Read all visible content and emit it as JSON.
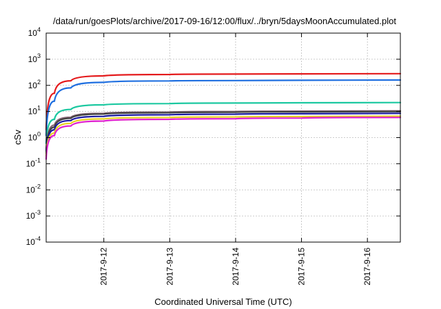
{
  "chart_data": {
    "type": "line",
    "title": "/data/run/goesPlots/archive/2017-09-16/12:00/flux/../bryn/5daysMoonAccumulated.plot",
    "xlabel": "Coordinated Universal Time (UTC)",
    "ylabel": "cSv",
    "y_scale": "log",
    "ylim": [
      0.0001,
      10000
    ],
    "xlim": [
      "2017-09-11 03:00",
      "2017-09-16 12:00"
    ],
    "x_ticks": [
      "2017-9-12",
      "2017-9-13",
      "2017-9-14",
      "2017-9-15",
      "2017-9-16"
    ],
    "y_ticks": [
      {
        "value": 0.0001,
        "base": "10",
        "exp": "-4"
      },
      {
        "value": 0.001,
        "base": "10",
        "exp": "-3"
      },
      {
        "value": 0.01,
        "base": "10",
        "exp": "-2"
      },
      {
        "value": 0.1,
        "base": "10",
        "exp": "-1"
      },
      {
        "value": 1,
        "base": "10",
        "exp": "0"
      },
      {
        "value": 10,
        "base": "10",
        "exp": "1"
      },
      {
        "value": 100,
        "base": "10",
        "exp": "2"
      },
      {
        "value": 1000,
        "base": "10",
        "exp": "3"
      },
      {
        "value": 10000,
        "base": "10",
        "exp": "4"
      }
    ],
    "grid": true,
    "series": [
      {
        "color": "#e41a1c",
        "x": [
          "2017-09-11 03:00",
          "2017-09-11 06:00",
          "2017-09-11 12:00",
          "2017-09-12 00:00",
          "2017-09-13 00:00",
          "2017-09-14 00:00",
          "2017-09-15 00:00",
          "2017-09-16 12:00"
        ],
        "y": [
          2,
          50,
          150,
          230,
          260,
          270,
          275,
          280
        ]
      },
      {
        "color": "#1f6fe0",
        "x": [
          "2017-09-11 03:00",
          "2017-09-11 06:00",
          "2017-09-11 12:00",
          "2017-09-12 00:00",
          "2017-09-13 00:00",
          "2017-09-14 00:00",
          "2017-09-15 00:00",
          "2017-09-16 12:00"
        ],
        "y": [
          1.2,
          25,
          80,
          130,
          148,
          153,
          156,
          160
        ]
      },
      {
        "color": "#1bc8a0",
        "x": [
          "2017-09-11 03:00",
          "2017-09-11 06:00",
          "2017-09-11 12:00",
          "2017-09-12 00:00",
          "2017-09-13 00:00",
          "2017-09-14 00:00",
          "2017-09-15 00:00",
          "2017-09-16 12:00"
        ],
        "y": [
          0.6,
          5,
          12,
          18,
          20,
          21,
          21.5,
          22
        ]
      },
      {
        "color": "#8b6a7a",
        "x": [
          "2017-09-11 03:00",
          "2017-09-11 06:00",
          "2017-09-11 12:00",
          "2017-09-12 00:00",
          "2017-09-13 00:00",
          "2017-09-14 00:00",
          "2017-09-15 00:00",
          "2017-09-16 12:00"
        ],
        "y": [
          0.3,
          3,
          6,
          8.5,
          9.5,
          10,
          10.3,
          10.6
        ]
      },
      {
        "color": "#404040",
        "x": [
          "2017-09-11 03:00",
          "2017-09-11 06:00",
          "2017-09-11 12:00",
          "2017-09-12 00:00",
          "2017-09-13 00:00",
          "2017-09-14 00:00",
          "2017-09-15 00:00",
          "2017-09-16 12:00"
        ],
        "y": [
          0.3,
          2.5,
          5.5,
          8,
          9,
          9.4,
          9.7,
          10
        ]
      },
      {
        "color": "#1a1aa0",
        "x": [
          "2017-09-11 03:00",
          "2017-09-11 06:00",
          "2017-09-11 12:00",
          "2017-09-12 00:00",
          "2017-09-13 00:00",
          "2017-09-14 00:00",
          "2017-09-15 00:00",
          "2017-09-16 12:00"
        ],
        "y": [
          0.25,
          2,
          4.5,
          6.5,
          7.5,
          7.9,
          8.2,
          8.5
        ]
      },
      {
        "color": "#e8d020",
        "x": [
          "2017-09-11 03:00",
          "2017-09-11 06:00",
          "2017-09-11 12:00",
          "2017-09-12 00:00",
          "2017-09-13 00:00",
          "2017-09-14 00:00",
          "2017-09-15 00:00",
          "2017-09-16 12:00"
        ],
        "y": [
          0.2,
          1.5,
          3.5,
          5.2,
          5.9,
          6.2,
          6.4,
          6.6
        ]
      },
      {
        "color": "#e020d0",
        "x": [
          "2017-09-11 03:00",
          "2017-09-11 06:00",
          "2017-09-11 12:00",
          "2017-09-12 00:00",
          "2017-09-13 00:00",
          "2017-09-14 00:00",
          "2017-09-15 00:00",
          "2017-09-16 12:00"
        ],
        "y": [
          0.15,
          1.2,
          2.8,
          4.3,
          5,
          5.3,
          5.6,
          5.9
        ]
      }
    ]
  }
}
